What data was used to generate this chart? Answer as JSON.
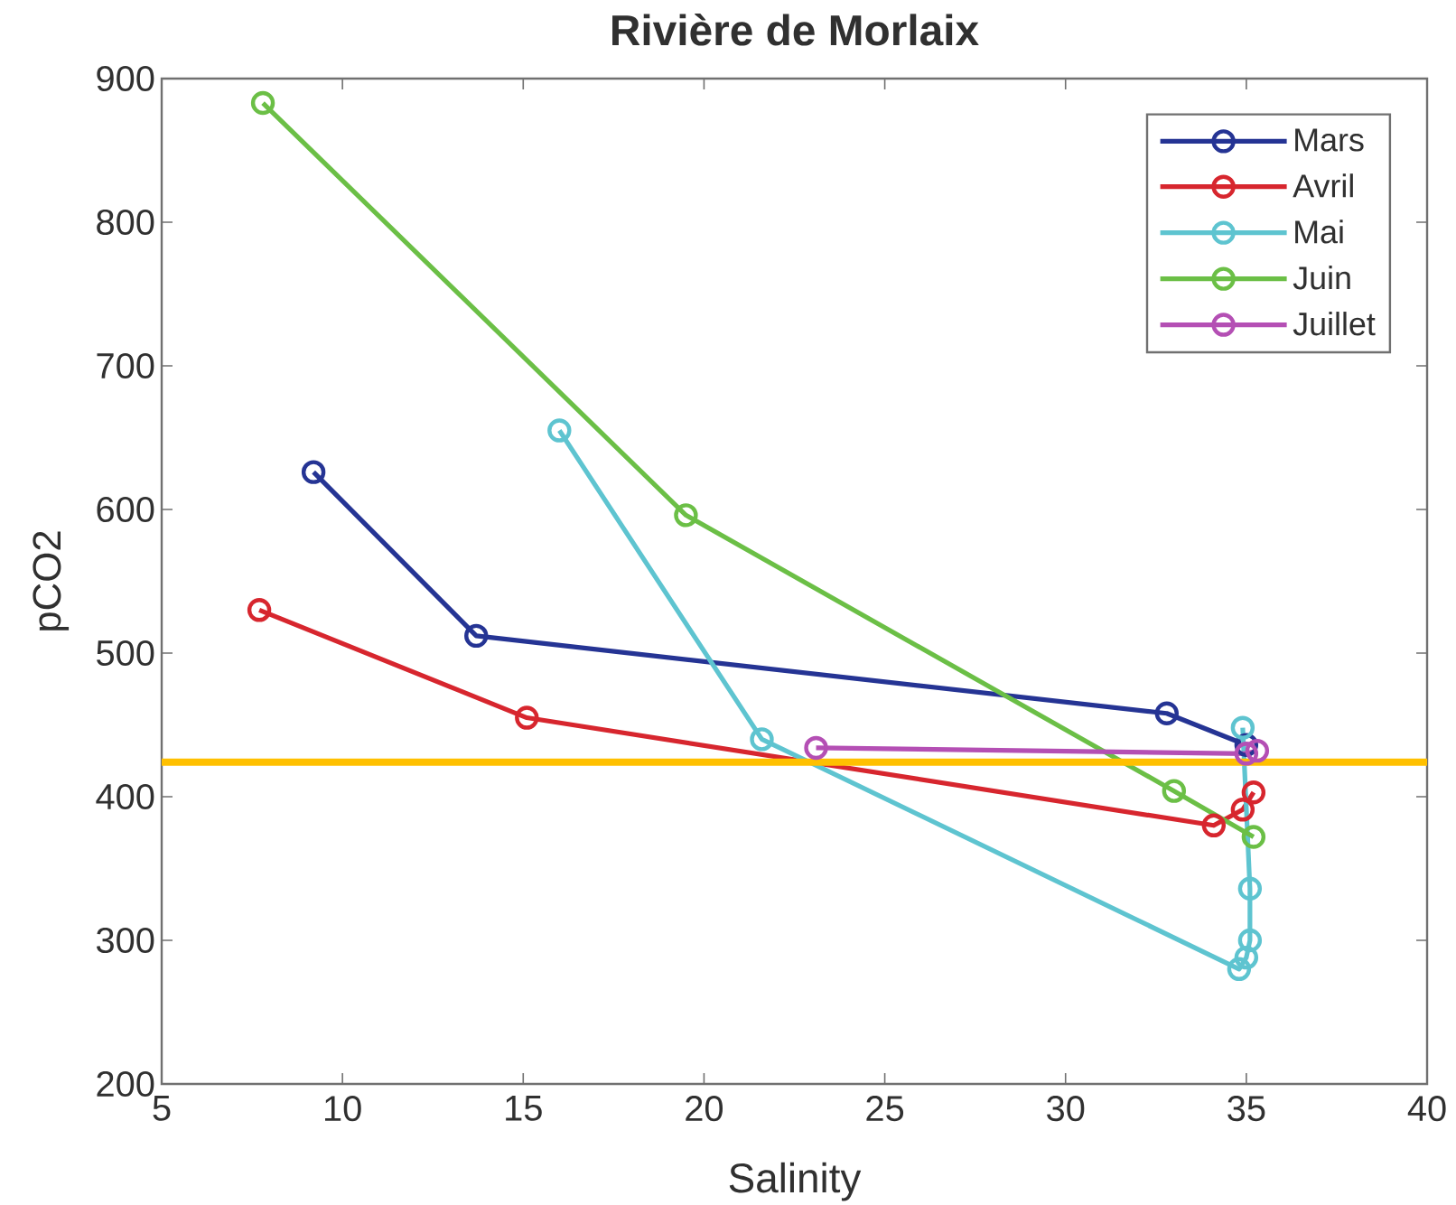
{
  "chart_data": {
    "type": "line",
    "title": "Rivière de Morlaix",
    "xlabel": "Salinity",
    "ylabel": "pCO2",
    "xlim": [
      5,
      40
    ],
    "xticks": [
      5,
      10,
      15,
      20,
      25,
      30,
      35,
      40
    ],
    "ylim": [
      200,
      900
    ],
    "yticks": [
      200,
      300,
      400,
      500,
      600,
      700,
      800,
      900
    ],
    "grid": false,
    "legend": "top right",
    "marker": "circle",
    "line_style": "solid",
    "ref_lines": [
      {
        "axis": "y",
        "value": 424,
        "color": "#ffc000"
      }
    ],
    "series": [
      {
        "name": "Mars",
        "color": "#253494",
        "x": [
          9.2,
          13.7,
          32.8,
          35.0
        ],
        "values": [
          626,
          512,
          458,
          436
        ]
      },
      {
        "name": "Avril",
        "color": "#d7262e",
        "x": [
          7.7,
          15.1,
          34.1,
          34.9,
          35.2
        ],
        "values": [
          530,
          455,
          380,
          391,
          403
        ]
      },
      {
        "name": "Mai",
        "color": "#5ec4d0",
        "x": [
          16.0,
          21.6,
          34.8,
          35.0,
          35.1,
          35.1,
          34.9
        ],
        "values": [
          655,
          440,
          280,
          288,
          300,
          336,
          448
        ]
      },
      {
        "name": "Juin",
        "color": "#6bbf46",
        "x": [
          7.8,
          19.5,
          33.0,
          35.2
        ],
        "values": [
          883,
          596,
          404,
          372
        ]
      },
      {
        "name": "Juillet",
        "color": "#b44fb4",
        "x": [
          23.1,
          35.0,
          35.3
        ],
        "values": [
          434,
          430,
          432
        ]
      }
    ]
  }
}
